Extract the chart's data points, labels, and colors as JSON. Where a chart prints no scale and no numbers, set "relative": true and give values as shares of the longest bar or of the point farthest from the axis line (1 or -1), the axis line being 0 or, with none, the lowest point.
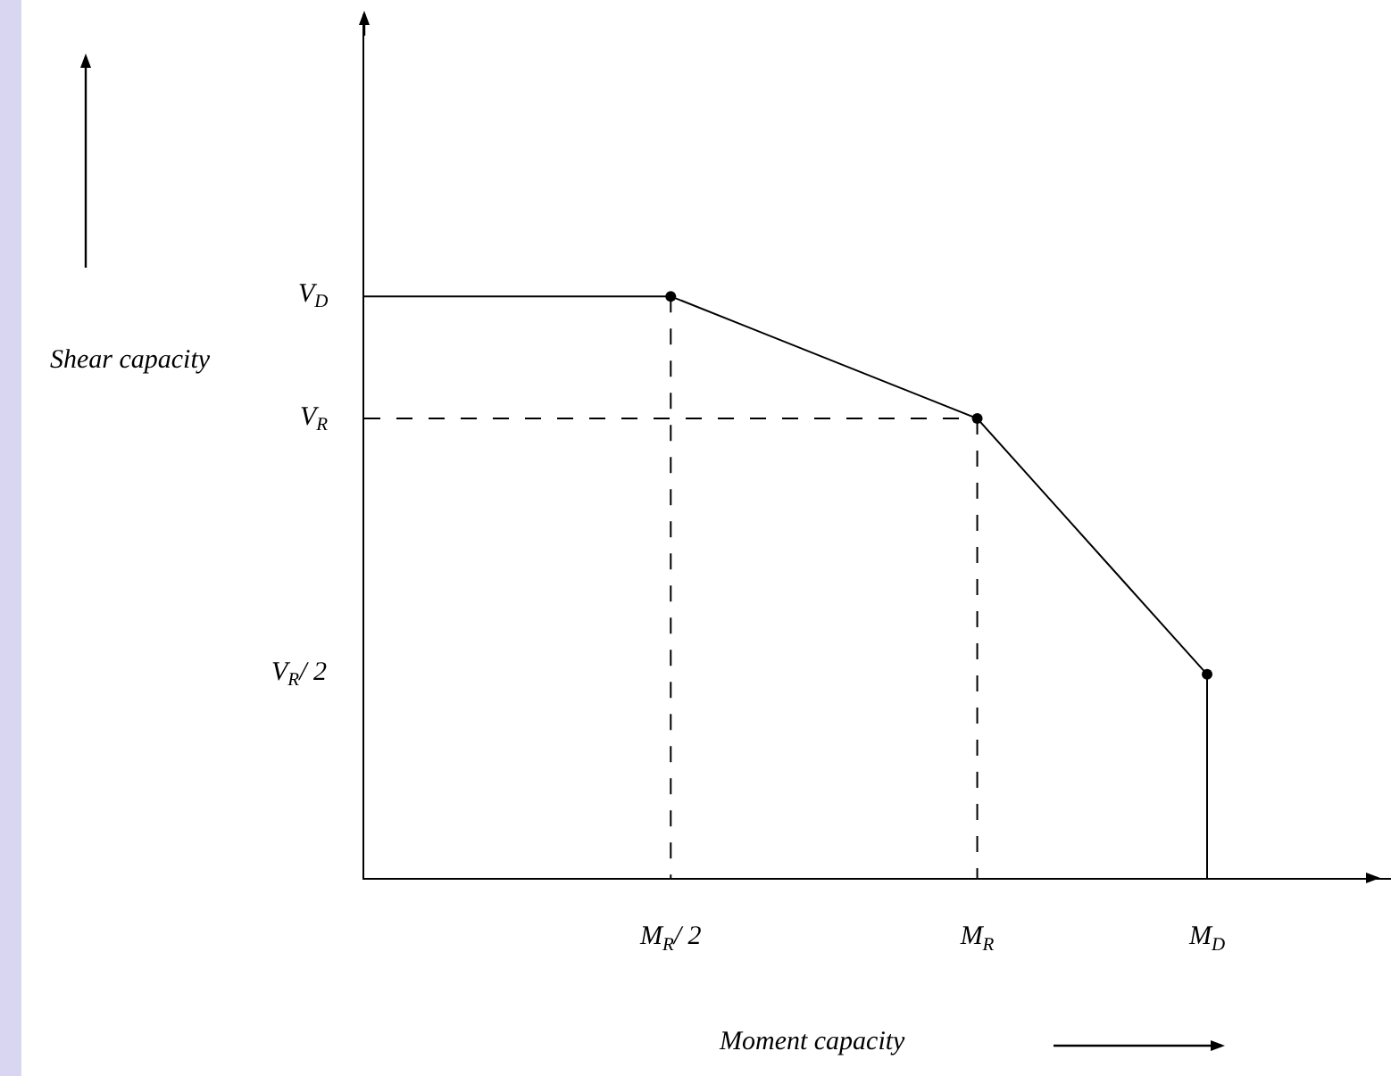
{
  "chart_data": {
    "type": "line",
    "xlabel": "Moment capacity",
    "relative": true,
    "categories": [
      null,
      null,
      null,
      null,
      "M$_{R}$/ 2",
      null,
      null,
      null,
      "M$_{R}$",
      null,
      null,
      "M$_{D}$",
      null,
      null
    ],
    "annotations": [
      "V$_{R}$/ 2",
      "V$_{R}$",
      "V$_{D}$",
      "Shear capacity"
    ],
    "grid": false,
    "series": [
      {
        "color": "#000000",
        "line_style": "solid",
        "marker": "none",
        "values": [
          1,
          1,
          1,
          1,
          1,
          0.9475,
          0.895,
          0.8425,
          0.79,
          0.6433,
          0.4967,
          0.35,
          null,
          null
        ]
      },
      {
        "type": "line",
        "color": "#000000",
        "line_style": "solid",
        "marker": "none",
        "x": [
          "M$_{D}$",
          "M$_{D}$"
        ],
        "values": [
          0.35,
          0
        ]
      },
      {
        "type": "line",
        "color": "#000000",
        "line_style": "dashed",
        "marker": "none",
        "x": [
          "M$_{R}$/ 2",
          "M$_{R}$/ 2"
        ],
        "values": [
          1,
          0
        ]
      },
      {
        "type": "line",
        "color": "#000000",
        "line_style": "dashed",
        "marker": "none",
        "values": [
          0.79,
          0.79,
          0.79,
          0.79,
          0.79,
          0.79,
          0.79,
          0.79,
          0.79,
          null,
          null,
          null,
          null,
          null
        ]
      },
      {
        "type": "line",
        "color": "#000000",
        "line_style": "dashed",
        "marker": "none",
        "x": [
          "M$_{R}$",
          "M$_{R}$"
        ],
        "values": [
          0.79,
          0
        ]
      },
      {
        "type": "scatter",
        "color": "#000000",
        "marker": "circle",
        "x": [
          "M$_{R}$/ 2",
          "M$_{R}$",
          "M$_{D}$"
        ],
        "values": [
          1,
          0.79,
          0.35
        ]
      }
    ]
  }
}
